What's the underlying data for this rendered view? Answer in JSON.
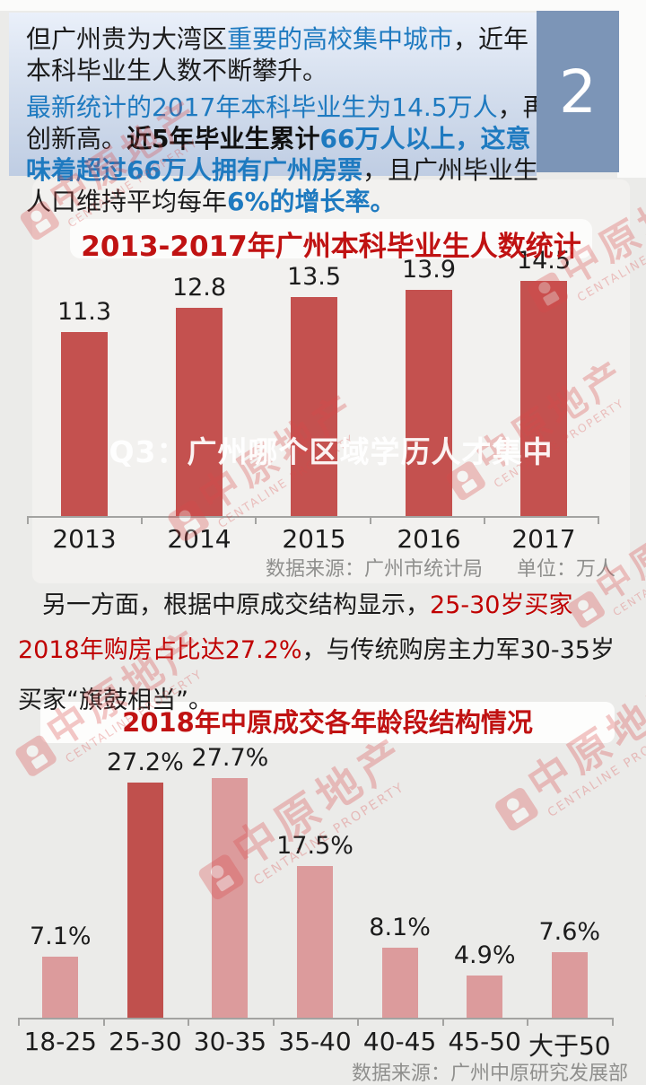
{
  "badge": {
    "label": "2"
  },
  "watermark": {
    "cn": "中原地产",
    "en": "CENTALINE PROPERTY"
  },
  "intro": {
    "lines": [
      {
        "segs": [
          {
            "t": "但广州贵为大湾区",
            "s": "k"
          },
          {
            "t": "重要的高校集中城市",
            "s": "b"
          },
          {
            "t": "，近年",
            "s": "k"
          }
        ]
      },
      {
        "segs": [
          {
            "t": "本科毕业生人数不断攀升。",
            "s": "k"
          }
        ]
      },
      {
        "segs": [
          {
            "t": "最新统计的2017年本科毕业生为14.5万人",
            "s": "b"
          },
          {
            "t": "，再",
            "s": "k"
          }
        ]
      },
      {
        "segs": [
          {
            "t": "创新高。",
            "s": "k"
          },
          {
            "t": "近5年毕业生累计",
            "s": "kb"
          },
          {
            "t": "66万人以上，这意",
            "s": "bb"
          }
        ]
      },
      {
        "segs": [
          {
            "t": "味着超过66万人拥有广州房票",
            "s": "bb"
          },
          {
            "t": "，且广州毕业生",
            "s": "k"
          }
        ]
      },
      {
        "segs": [
          {
            "t": "人口维持平均每年",
            "s": "k"
          },
          {
            "t": "6%的增长率。",
            "s": "bb"
          }
        ]
      }
    ]
  },
  "chart1": {
    "title": "2013-2017年广州本科毕业生人数统计",
    "overlay": "Q3：广州哪个区域学历人才集中",
    "source": "数据来源：广州市统计局",
    "unit": "单位：万人"
  },
  "paragraph": {
    "lines": [
      {
        "segs": [
          {
            "t": "　另一方面，根据中原成交结构显示，",
            "s": "k"
          },
          {
            "t": "25-30岁买家",
            "s": "r"
          }
        ]
      },
      {
        "segs": [
          {
            "t": "2018年购房占比达27.2%",
            "s": "r"
          },
          {
            "t": "，与传统购房主力军30-35岁",
            "s": "k"
          }
        ]
      },
      {
        "segs": [
          {
            "t": "买家“旗鼓相当”。",
            "s": "k"
          }
        ]
      }
    ]
  },
  "chart2": {
    "title": "2018年中原成交各年龄段结构情况",
    "source": "数据来源：广州中原研究发展部"
  },
  "chart_data": [
    {
      "type": "bar",
      "title": "2013-2017年广州本科毕业生人数统计",
      "categories": [
        "2013",
        "2014",
        "2015",
        "2016",
        "2017"
      ],
      "values": [
        11.3,
        12.8,
        13.5,
        13.9,
        14.5
      ],
      "data_labels": [
        "11.3",
        "12.8",
        "13.5",
        "13.9",
        "14.5"
      ],
      "xlabel": "",
      "ylabel": "",
      "unit": "万人",
      "source": "广州市统计局",
      "ylim": [
        0,
        16
      ],
      "grid": false,
      "legend": false,
      "bar_color": "#c4514f"
    },
    {
      "type": "bar",
      "title": "2018年中原成交各年龄段结构情况",
      "categories": [
        "18-25",
        "25-30",
        "30-35",
        "35-40",
        "40-45",
        "45-50",
        "大于50"
      ],
      "values": [
        7.1,
        27.2,
        27.7,
        17.5,
        8.1,
        4.9,
        7.6
      ],
      "data_labels": [
        "7.1%",
        "27.2%",
        "27.7%",
        "17.5%",
        "8.1%",
        "4.9%",
        "7.6%"
      ],
      "xlabel": "",
      "ylabel": "",
      "unit": "%",
      "source": "广州中原研究发展部",
      "ylim": [
        0,
        30
      ],
      "grid": false,
      "legend": false,
      "bar_color": "#dc9b9c",
      "highlight_index": 1,
      "highlight_color": "#c0504d"
    }
  ]
}
